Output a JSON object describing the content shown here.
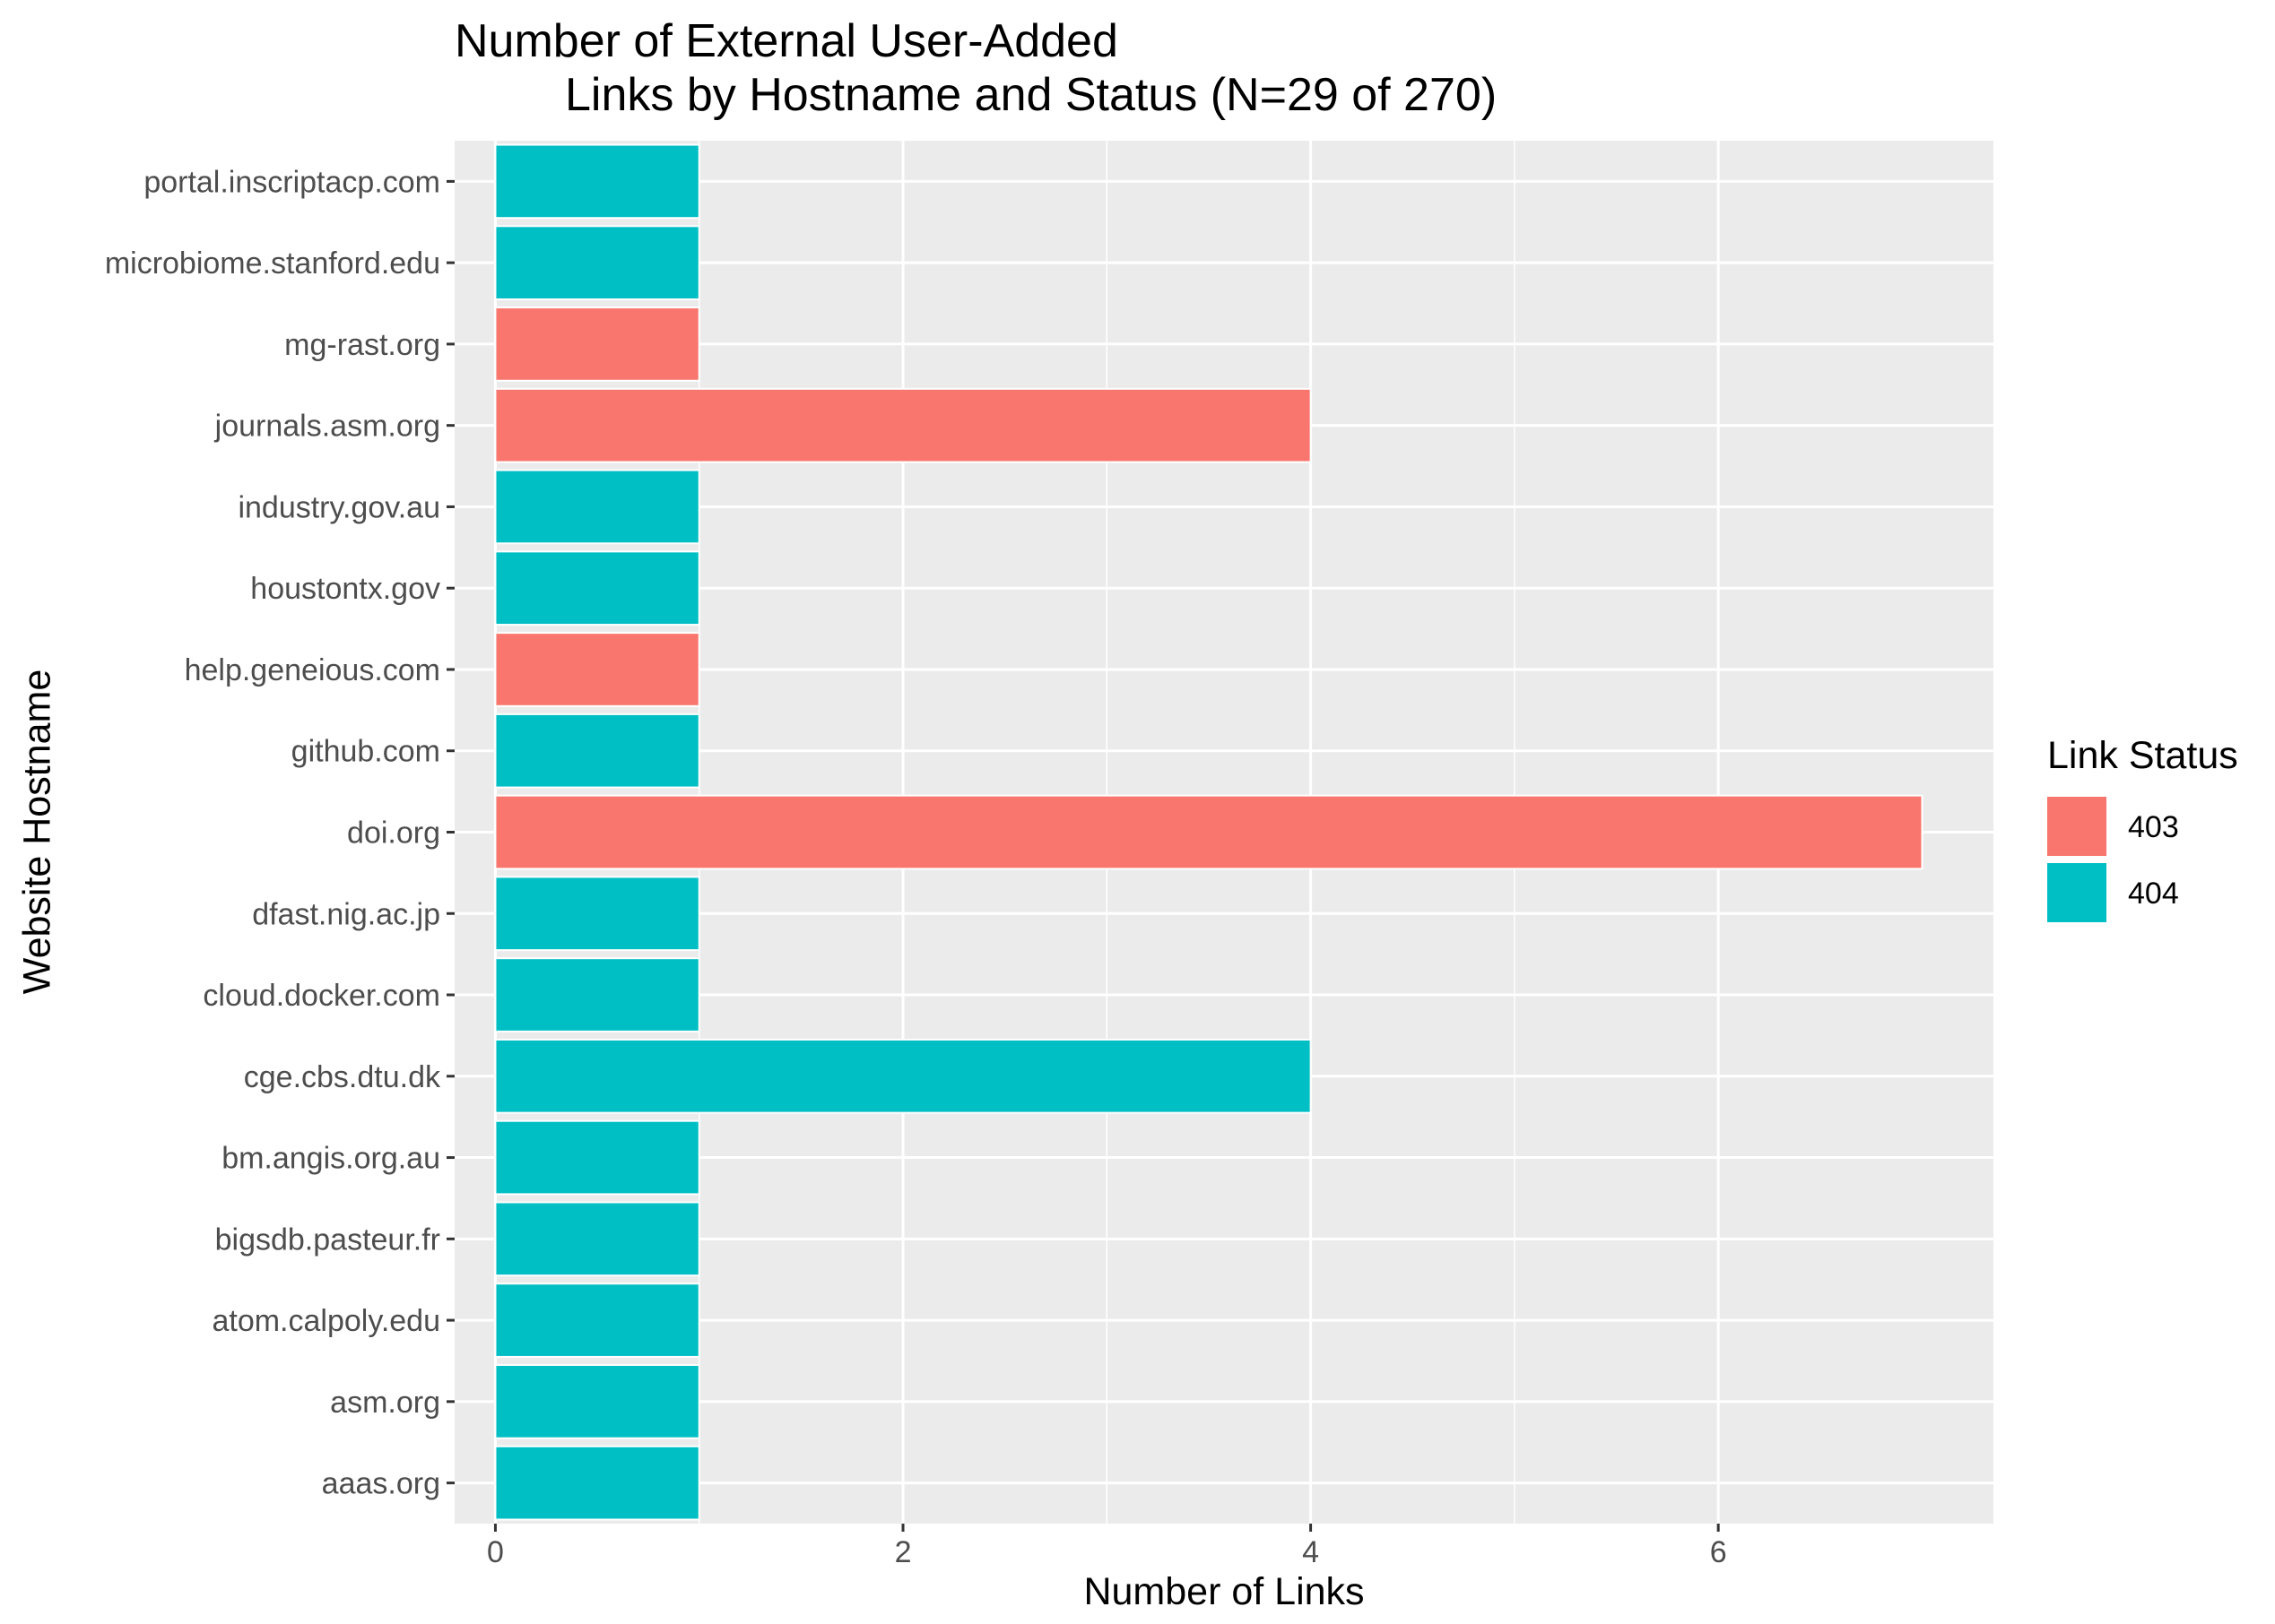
{
  "chart_data": {
    "type": "bar",
    "orientation": "horizontal",
    "title_line1": "Number of External User-Added",
    "title_line2": "Links by Hostname and Status (N=29 of 270)",
    "xlabel": "Number of Links",
    "ylabel": "Website Hostname",
    "xlim": [
      -0.2,
      7.35
    ],
    "x_ticks": [
      0,
      2,
      4,
      6
    ],
    "grid": true,
    "legend": {
      "title": "Link Status",
      "position": "right",
      "entries": [
        {
          "label": "403",
          "color": "#F8766D"
        },
        {
          "label": "404",
          "color": "#00BFC4"
        }
      ]
    },
    "categories": [
      "portal.inscriptacp.com",
      "microbiome.stanford.edu",
      "mg-rast.org",
      "journals.asm.org",
      "industry.gov.au",
      "houstontx.gov",
      "help.geneious.com",
      "github.com",
      "doi.org",
      "dfast.nig.ac.jp",
      "cloud.docker.com",
      "cge.cbs.dtu.dk",
      "bm.angis.org.au",
      "bigsdb.pasteur.fr",
      "atom.calpoly.edu",
      "asm.org",
      "aaas.org"
    ],
    "values": [
      1,
      1,
      1,
      4,
      1,
      1,
      1,
      1,
      7,
      1,
      1,
      4,
      1,
      1,
      1,
      1,
      1
    ],
    "status": [
      "404",
      "404",
      "403",
      "403",
      "404",
      "404",
      "403",
      "404",
      "403",
      "404",
      "404",
      "404",
      "404",
      "404",
      "404",
      "404",
      "404"
    ]
  }
}
